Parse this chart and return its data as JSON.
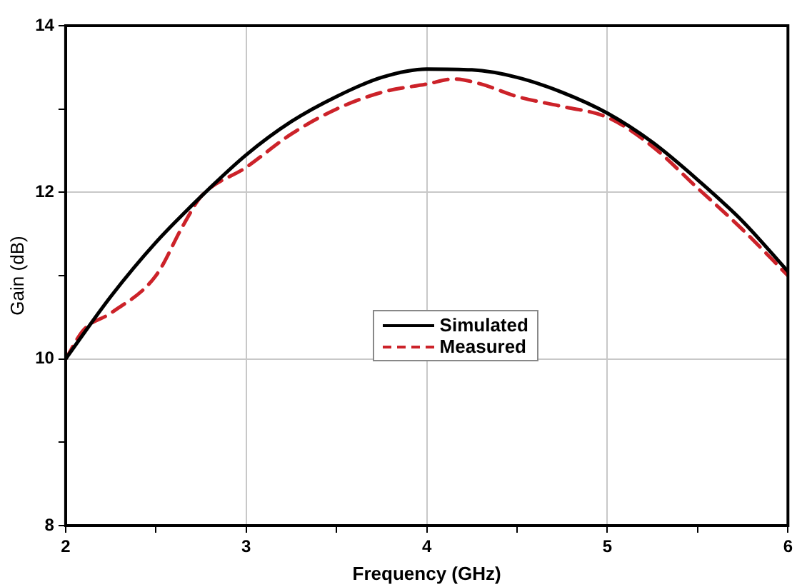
{
  "chart_data": {
    "type": "line",
    "xlabel": "Frequency (GHz)",
    "ylabel": "Gain (dB)",
    "xlim": [
      2,
      6
    ],
    "ylim": [
      8,
      14
    ],
    "xticks": [
      2,
      {
        "value": 2.5,
        "label": null
      },
      3,
      {
        "value": 3.5,
        "label": null
      },
      4,
      {
        "value": 4.5,
        "label": null
      },
      5,
      {
        "value": 5.5,
        "label": null
      },
      6
    ],
    "yticks": [
      8,
      {
        "value": 9,
        "label": null
      },
      10,
      {
        "value": 11,
        "label": null
      },
      12,
      {
        "value": 13,
        "label": null
      },
      14
    ],
    "grid": true,
    "legend": "center",
    "marker": "none",
    "series": [
      {
        "name": "Simulated",
        "color": "#000000",
        "line_style": "solid",
        "x": [
          2,
          2.25,
          2.5,
          2.75,
          3,
          3.25,
          3.5,
          3.75,
          4,
          4.25,
          4.5,
          4.75,
          5,
          5.25,
          5.5,
          5.75,
          6
        ],
        "values": [
          10.0,
          10.75,
          11.4,
          11.95,
          12.45,
          12.85,
          13.15,
          13.38,
          13.48,
          13.47,
          13.38,
          13.2,
          12.95,
          12.6,
          12.15,
          11.65,
          11.05
        ]
      },
      {
        "name": "Measured",
        "color": "#cc2229",
        "line_style": "dashed",
        "x": [
          2,
          2.1,
          2.25,
          2.5,
          2.65,
          2.75,
          3,
          3.25,
          3.5,
          3.75,
          4,
          4.15,
          4.3,
          4.5,
          4.75,
          5,
          5.25,
          5.5,
          5.75,
          6
        ],
        "values": [
          10.0,
          10.35,
          10.55,
          11.0,
          11.6,
          11.95,
          12.3,
          12.7,
          13.0,
          13.2,
          13.3,
          13.36,
          13.3,
          13.15,
          13.03,
          12.9,
          12.55,
          12.05,
          11.55,
          11.0
        ]
      }
    ]
  }
}
